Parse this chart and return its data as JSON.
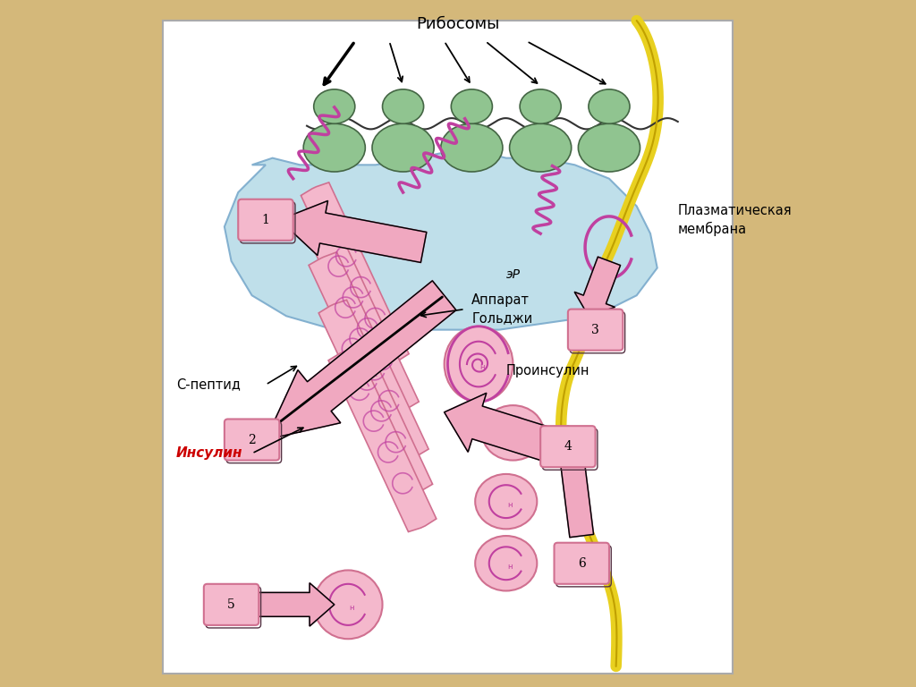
{
  "background_color": "#d4b87a",
  "white_area": "#ffffff",
  "title_ribosomes": "Рибосомы",
  "label_er": "эР",
  "label_proinsulin": "Проинсулин",
  "label_golgi": "Аппарат\nГольджи",
  "label_cpeptide": "С-пептид",
  "label_insulin": "Инсулин",
  "label_membrane": "Плазматическая\nмембрана",
  "ribosome_color": "#90c490",
  "er_color": "#b8dce8",
  "pink_color": "#f0a8c0",
  "pink_light": "#f8d0e0",
  "pink_dark": "#d07090",
  "pink_fill": "#f4b8cc",
  "yellow_color": "#e8d020",
  "magenta_color": "#c040a0",
  "insulin_text_color": "#cc0000",
  "black": "#000000",
  "gray_edge": "#888888",
  "white": "#ffffff"
}
